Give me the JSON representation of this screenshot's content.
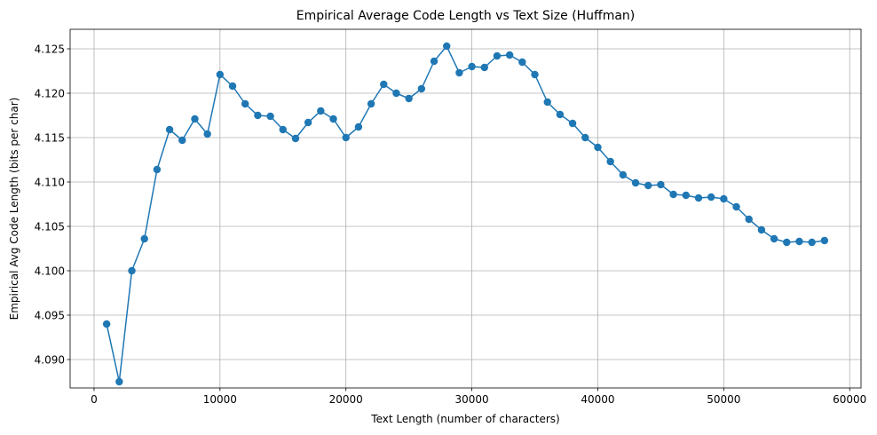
{
  "chart_data": {
    "type": "line",
    "title": "Empirical Average Code Length vs Text Size (Huffman)",
    "xlabel": "Text Length (number of characters)",
    "ylabel": "Empirical Avg Code Length (bits per char)",
    "xlim": [
      -1900,
      60900
    ],
    "ylim": [
      4.0868,
      4.1272
    ],
    "xticks": [
      0,
      10000,
      20000,
      30000,
      40000,
      50000,
      60000
    ],
    "yticks": [
      4.09,
      4.095,
      4.1,
      4.105,
      4.11,
      4.115,
      4.12,
      4.125
    ],
    "xtick_labels": [
      "0",
      "10000",
      "20000",
      "30000",
      "40000",
      "50000",
      "60000"
    ],
    "ytick_labels": [
      "4.090",
      "4.095",
      "4.100",
      "4.105",
      "4.110",
      "4.115",
      "4.120",
      "4.125"
    ],
    "grid": true,
    "marker": "circle",
    "series_color": "#1f77b4",
    "grid_color": "#b0b0b0",
    "series": [
      {
        "x": [
          1000,
          2000,
          3000,
          4000,
          5000,
          6000,
          7000,
          8000,
          9000,
          10000,
          11000,
          12000,
          13000,
          14000,
          15000,
          16000,
          17000,
          18000,
          19000,
          20000,
          21000,
          22000,
          23000,
          24000,
          25000,
          26000,
          27000,
          28000,
          29000,
          30000,
          31000,
          32000,
          33000,
          34000,
          35000,
          36000,
          37000,
          38000,
          39000,
          40000,
          41000,
          42000,
          43000,
          44000,
          45000,
          46000,
          47000,
          48000,
          49000,
          50000,
          51000,
          52000,
          53000,
          54000,
          55000,
          56000,
          57000,
          58000
        ],
        "values": [
          4.094,
          4.0875,
          4.1,
          4.1036,
          4.1114,
          4.1159,
          4.1147,
          4.1171,
          4.1154,
          4.1221,
          4.1208,
          4.1188,
          4.1175,
          4.1174,
          4.1159,
          4.1149,
          4.1167,
          4.118,
          4.1171,
          4.115,
          4.1162,
          4.1188,
          4.121,
          4.12,
          4.1194,
          4.1205,
          4.1236,
          4.1253,
          4.1223,
          4.123,
          4.1229,
          4.1242,
          4.1243,
          4.1235,
          4.1221,
          4.119,
          4.1176,
          4.1166,
          4.115,
          4.1139,
          4.1123,
          4.1108,
          4.1099,
          4.1096,
          4.1097,
          4.1086,
          4.1085,
          4.1082,
          4.1083,
          4.1081,
          4.1072,
          4.1058,
          4.1046,
          4.1036,
          4.1032,
          4.1033,
          4.1032,
          4.1034
        ]
      }
    ]
  }
}
